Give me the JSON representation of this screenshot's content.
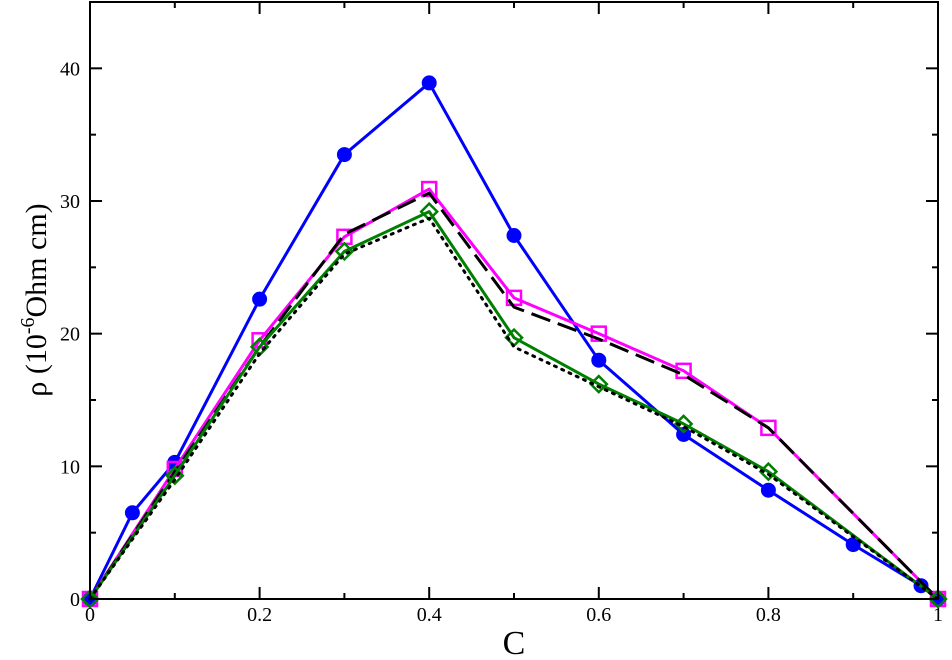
{
  "chart_data": {
    "type": "line",
    "xlabel": "C",
    "ylabel": {
      "prefix": "ρ (10",
      "exponent": "-6",
      "suffix": "Ohm cm)"
    },
    "xlim": [
      0,
      1
    ],
    "ylim": [
      0,
      45
    ],
    "x_ticks": [
      0,
      0.2,
      0.4,
      0.6,
      0.8,
      1
    ],
    "x_tick_labels": [
      "0",
      "0.2",
      "0.4",
      "0.6",
      "0.8",
      "1"
    ],
    "y_ticks": [
      0,
      10,
      20,
      30,
      40
    ],
    "y_tick_labels": [
      "0",
      "10",
      "20",
      "30",
      "40"
    ],
    "grid": false,
    "legend": "none",
    "series": [
      {
        "color": "#0000ff",
        "line_style": "solid",
        "marker": "filled-circle",
        "x": [
          0,
          0.05,
          0.1,
          0.2,
          0.3,
          0.4,
          0.5,
          0.6,
          0.7,
          0.8,
          0.9,
          0.98,
          1.0
        ],
        "y": [
          0,
          6.5,
          10.3,
          22.6,
          33.5,
          38.9,
          27.4,
          18.0,
          12.4,
          8.2,
          4.1,
          1.0,
          0
        ]
      },
      {
        "color": "#ff00ff",
        "line_style": "solid",
        "marker": "open-square",
        "x": [
          0,
          0.1,
          0.2,
          0.3,
          0.4,
          0.5,
          0.6,
          0.7,
          0.8,
          1.0
        ],
        "y": [
          0,
          9.8,
          19.5,
          27.3,
          30.9,
          22.7,
          20.0,
          17.2,
          12.9,
          0
        ]
      },
      {
        "color": "#000000",
        "line_style": "dashed",
        "marker": "none",
        "x": [
          0,
          0.1,
          0.2,
          0.3,
          0.4,
          0.5,
          0.6,
          0.7,
          0.8,
          1.0
        ],
        "y": [
          0,
          9.6,
          19.0,
          27.5,
          30.6,
          22.0,
          19.6,
          16.9,
          12.9,
          0
        ]
      },
      {
        "color": "#008000",
        "line_style": "solid",
        "marker": "open-diamond",
        "x": [
          0,
          0.1,
          0.2,
          0.3,
          0.4,
          0.5,
          0.6,
          0.7,
          0.8,
          1.0
        ],
        "y": [
          0,
          9.3,
          19.0,
          26.2,
          29.2,
          19.7,
          16.2,
          13.2,
          9.6,
          0
        ]
      },
      {
        "color": "#000000",
        "line_style": "dotted",
        "marker": "none",
        "x": [
          0,
          0.1,
          0.2,
          0.3,
          0.4,
          0.5,
          0.6,
          0.7,
          0.8,
          1.0
        ],
        "y": [
          0,
          9.0,
          18.5,
          26.0,
          28.7,
          19.0,
          16.0,
          13.0,
          9.4,
          0
        ]
      }
    ]
  }
}
